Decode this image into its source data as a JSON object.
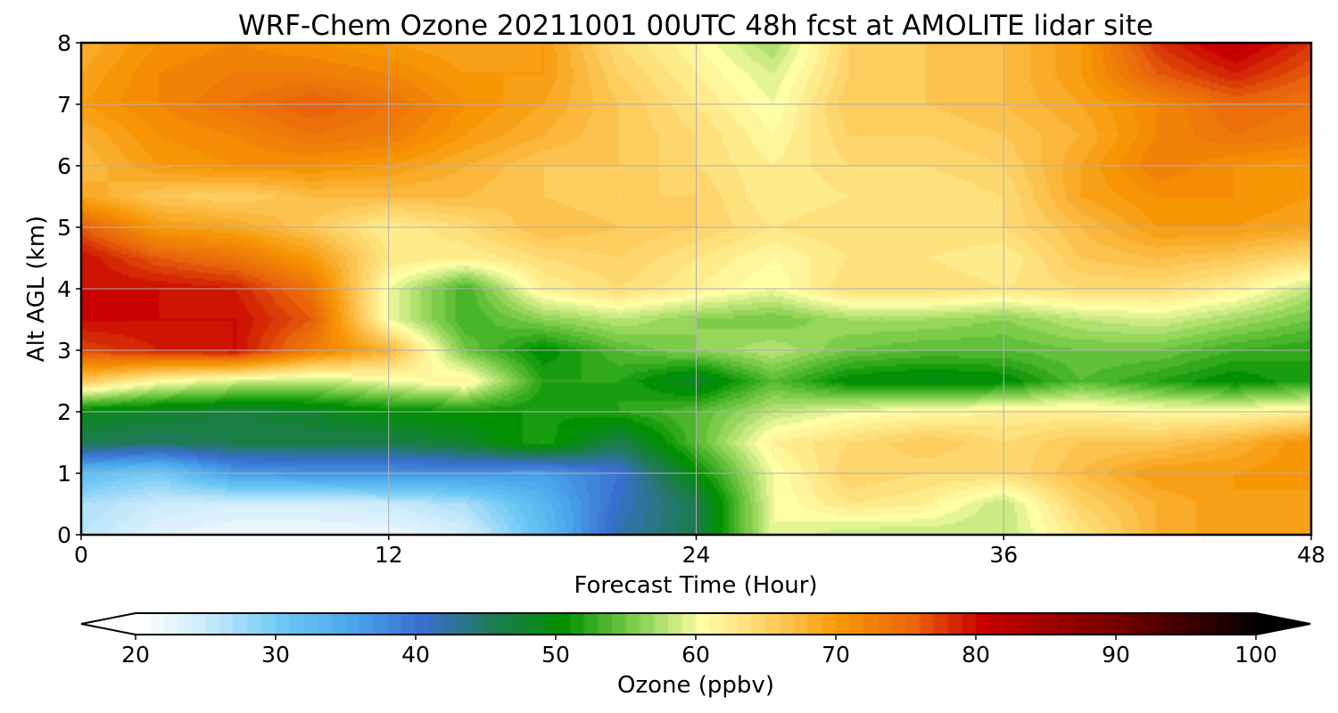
{
  "chart_data": {
    "type": "heatmap",
    "title": "WRF-Chem Ozone  20211001 00UTC 48h fcst at AMOLITE lidar site",
    "xlabel": "Forecast Time (Hour)",
    "ylabel": "Alt AGL (km)",
    "xlim": [
      0,
      48
    ],
    "ylim": [
      0,
      8
    ],
    "xticks": [
      0,
      12,
      24,
      36,
      48
    ],
    "yticks": [
      0,
      1,
      2,
      3,
      4,
      5,
      6,
      7,
      8
    ],
    "grid": true,
    "x": [
      0,
      3,
      6,
      9,
      12,
      15,
      18,
      21,
      24,
      27,
      30,
      33,
      36,
      39,
      42,
      45,
      48
    ],
    "y": [
      0,
      0.5,
      1,
      1.5,
      2,
      2.5,
      3,
      3.5,
      4,
      4.5,
      5,
      5.5,
      6,
      6.5,
      7,
      7.5,
      8
    ],
    "z": [
      [
        26,
        23,
        22,
        22,
        22,
        24,
        32,
        42,
        46,
        60,
        58,
        58,
        58,
        63,
        68,
        70,
        70
      ],
      [
        27,
        25,
        24,
        24,
        25,
        27,
        33,
        41,
        46,
        60,
        63,
        62,
        58,
        65,
        68,
        70,
        69
      ],
      [
        32,
        30,
        36,
        37,
        37,
        37,
        36,
        40,
        50,
        60,
        65,
        64,
        64,
        67,
        70,
        70,
        71
      ],
      [
        46,
        45,
        46,
        46,
        46,
        48,
        52,
        46,
        54,
        62,
        64,
        66,
        64,
        66,
        66,
        68,
        71
      ],
      [
        49,
        48,
        47,
        48,
        50,
        51,
        51,
        52,
        54,
        58,
        60,
        61,
        62,
        62,
        61,
        61,
        62
      ],
      [
        66,
        61,
        59,
        58,
        60,
        62,
        52,
        52,
        48,
        54,
        50,
        49,
        50,
        54,
        52,
        50,
        52
      ],
      [
        77,
        79,
        80,
        73,
        68,
        55,
        50,
        54,
        56,
        58,
        55,
        54,
        54,
        55,
        55,
        53,
        52
      ],
      [
        80,
        80,
        80,
        76,
        60,
        53,
        56,
        58,
        56,
        55,
        57,
        57,
        56,
        58,
        59,
        57,
        55
      ],
      [
        80,
        80,
        79,
        74,
        60,
        53,
        62,
        64,
        62,
        60,
        64,
        64,
        63,
        64,
        64,
        62,
        58
      ],
      [
        80,
        76,
        74,
        70,
        63,
        62,
        64,
        65,
        63,
        61,
        63,
        63,
        62,
        66,
        67,
        66,
        64
      ],
      [
        76,
        70,
        69,
        66,
        62,
        64,
        67,
        66,
        65,
        63,
        64,
        64,
        64,
        67,
        70,
        70,
        69
      ],
      [
        69,
        66,
        65,
        67,
        67,
        67,
        66,
        65,
        65,
        62,
        63,
        63,
        64,
        69,
        71,
        71,
        70
      ],
      [
        67,
        70,
        71,
        71,
        70,
        68,
        66,
        66,
        64,
        62,
        64,
        64,
        65,
        69,
        73,
        71,
        70
      ],
      [
        68,
        71,
        72,
        74,
        73,
        70,
        68,
        66,
        64,
        61,
        65,
        65,
        66,
        68,
        72,
        74,
        73
      ],
      [
        70,
        72,
        74,
        76,
        74,
        71,
        69,
        66,
        63,
        60,
        66,
        66,
        67,
        69,
        72,
        75,
        74
      ],
      [
        69,
        72,
        73,
        73,
        72,
        70,
        70,
        65,
        62,
        59,
        65,
        66,
        67,
        70,
        76,
        79,
        76
      ],
      [
        68,
        71,
        72,
        71,
        70,
        69,
        70,
        64,
        61,
        57,
        65,
        66,
        67,
        70,
        78,
        82,
        78
      ]
    ],
    "colorbar": {
      "label": "Ozone  (ppbv)",
      "min": 20,
      "max": 100,
      "ticks": [
        20,
        30,
        40,
        50,
        60,
        70,
        80,
        90,
        100
      ],
      "extend": "both",
      "stops": [
        {
          "v": 20,
          "c": "#ffffff"
        },
        {
          "v": 25,
          "c": "#c4e8fb"
        },
        {
          "v": 30,
          "c": "#6dc8f5"
        },
        {
          "v": 35,
          "c": "#4aa5ea"
        },
        {
          "v": 40,
          "c": "#3a6fd0"
        },
        {
          "v": 45,
          "c": "#1f7a55"
        },
        {
          "v": 50,
          "c": "#009000"
        },
        {
          "v": 55,
          "c": "#7ccc4a"
        },
        {
          "v": 60,
          "c": "#ffffa8"
        },
        {
          "v": 65,
          "c": "#fdcd60"
        },
        {
          "v": 70,
          "c": "#f79605"
        },
        {
          "v": 75,
          "c": "#e8650c"
        },
        {
          "v": 80,
          "c": "#c80000"
        },
        {
          "v": 90,
          "c": "#700000"
        },
        {
          "v": 100,
          "c": "#000000"
        }
      ]
    }
  }
}
